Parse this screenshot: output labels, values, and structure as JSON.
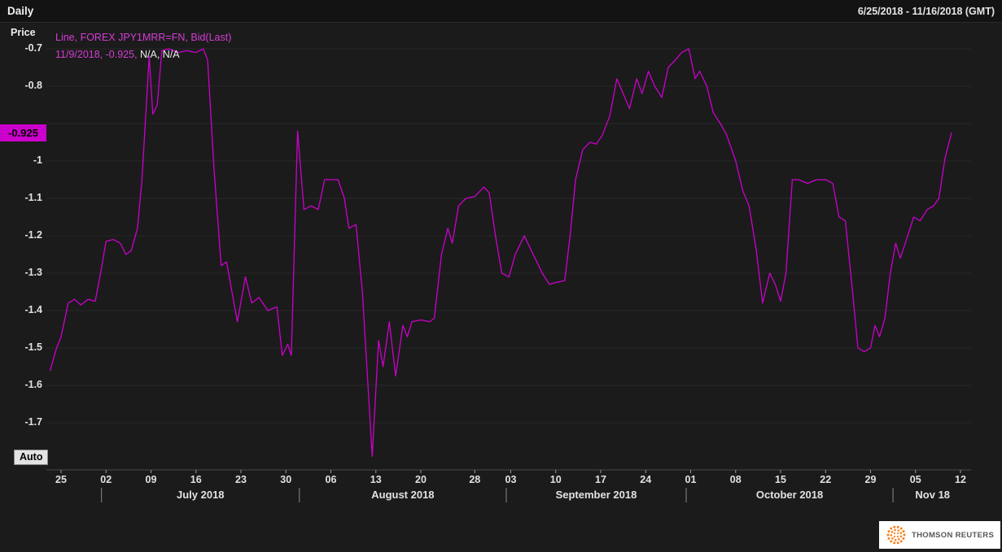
{
  "topbar": {
    "interval": "Daily",
    "date_range": "6/25/2018 - 11/16/2018 (GMT)"
  },
  "axis_title": "Price",
  "legend": {
    "line1": "Line, FOREX JPY1MRR=FN, Bid(Last)",
    "line2_magenta": "11/9/2018, -0.925,",
    "line2_white": " N/A, N/A"
  },
  "last_price_badge": "-0.925",
  "auto_button": "Auto",
  "branding": "THOMSON REUTERS",
  "colors": {
    "background": "#1b1b1b",
    "line": "#cc00cc",
    "badge_bg": "#cc00cc",
    "legend_magenta": "#d63cd6",
    "grid": "#272727",
    "axis_line": "#4a4a4a",
    "tick": "#9a9a9a",
    "text": "#e2e2e2",
    "logo_orange": "#f58220"
  },
  "chart_data": {
    "type": "line",
    "title": "FOREX JPY1MRR=FN, Bid(Last), Daily",
    "xlabel": "",
    "ylabel": "Price",
    "ylim": [
      -1.82,
      -0.64
    ],
    "xlim_days": [
      -1.5,
      101.5
    ],
    "grid": "horizontal, subtle",
    "legend_position": "top-left",
    "last": {
      "date": "11/9/2018",
      "value": -0.925
    },
    "y_ticks": [
      {
        "label": "-0.7",
        "v": -0.7
      },
      {
        "label": "-0.8",
        "v": -0.8
      },
      {
        "label": "-0.9",
        "v": -0.9,
        "hidden": true
      },
      {
        "label": "-1",
        "v": -1.0
      },
      {
        "label": "-1.1",
        "v": -1.1
      },
      {
        "label": "-1.2",
        "v": -1.2
      },
      {
        "label": "-1.3",
        "v": -1.3
      },
      {
        "label": "-1.4",
        "v": -1.4
      },
      {
        "label": "-1.5",
        "v": -1.5
      },
      {
        "label": "-1.6",
        "v": -1.6
      },
      {
        "label": "-1.7",
        "v": -1.7
      }
    ],
    "x_ticks": [
      {
        "label": "25",
        "day": 0
      },
      {
        "label": "02",
        "day": 5
      },
      {
        "label": "09",
        "day": 10
      },
      {
        "label": "16",
        "day": 15
      },
      {
        "label": "23",
        "day": 20
      },
      {
        "label": "30",
        "day": 25
      },
      {
        "label": "06",
        "day": 30
      },
      {
        "label": "13",
        "day": 35
      },
      {
        "label": "20",
        "day": 40
      },
      {
        "label": "28",
        "day": 46
      },
      {
        "label": "03",
        "day": 50
      },
      {
        "label": "10",
        "day": 55
      },
      {
        "label": "17",
        "day": 60
      },
      {
        "label": "24",
        "day": 65
      },
      {
        "label": "01",
        "day": 70
      },
      {
        "label": "08",
        "day": 75
      },
      {
        "label": "15",
        "day": 80
      },
      {
        "label": "22",
        "day": 85
      },
      {
        "label": "29",
        "day": 90
      },
      {
        "label": "05",
        "day": 95
      },
      {
        "label": "12",
        "day": 100
      }
    ],
    "months": [
      {
        "label": "July 2018",
        "start": 4.5,
        "end": 26.5
      },
      {
        "label": "August 2018",
        "start": 26.5,
        "end": 49.5
      },
      {
        "label": "September 2018",
        "start": 49.5,
        "end": 69.5
      },
      {
        "label": "October 2018",
        "start": 69.5,
        "end": 92.5
      },
      {
        "label": "Nov 18",
        "start": 92.5,
        "end": 101.3
      }
    ],
    "points": [
      [
        -1.2,
        -1.56
      ],
      [
        -0.5,
        -1.5
      ],
      [
        0,
        -1.47
      ],
      [
        0.8,
        -1.38
      ],
      [
        1.5,
        -1.37
      ],
      [
        2.2,
        -1.385
      ],
      [
        3,
        -1.37
      ],
      [
        3.8,
        -1.375
      ],
      [
        4.4,
        -1.3
      ],
      [
        5,
        -1.215
      ],
      [
        5.8,
        -1.21
      ],
      [
        6.6,
        -1.22
      ],
      [
        7.2,
        -1.25
      ],
      [
        7.8,
        -1.24
      ],
      [
        8.5,
        -1.18
      ],
      [
        9,
        -1.05
      ],
      [
        9.8,
        -0.72
      ],
      [
        10.2,
        -0.875
      ],
      [
        10.7,
        -0.85
      ],
      [
        11.2,
        -0.705
      ],
      [
        12,
        -0.7
      ],
      [
        13,
        -0.71
      ],
      [
        14,
        -0.705
      ],
      [
        15,
        -0.71
      ],
      [
        15.8,
        -0.7
      ],
      [
        16.3,
        -0.73
      ],
      [
        17,
        -1.02
      ],
      [
        17.8,
        -1.28
      ],
      [
        18.4,
        -1.27
      ],
      [
        19.6,
        -1.43
      ],
      [
        20.5,
        -1.31
      ],
      [
        21.2,
        -1.38
      ],
      [
        22,
        -1.365
      ],
      [
        23,
        -1.4
      ],
      [
        24,
        -1.39
      ],
      [
        24.6,
        -1.52
      ],
      [
        25.2,
        -1.49
      ],
      [
        25.6,
        -1.52
      ],
      [
        26.3,
        -0.92
      ],
      [
        27,
        -1.13
      ],
      [
        27.8,
        -1.12
      ],
      [
        28.6,
        -1.13
      ],
      [
        29.3,
        -1.05
      ],
      [
        30,
        -1.05
      ],
      [
        30.8,
        -1.05
      ],
      [
        31.5,
        -1.1
      ],
      [
        32,
        -1.18
      ],
      [
        32.8,
        -1.17
      ],
      [
        33.5,
        -1.35
      ],
      [
        34,
        -1.55
      ],
      [
        34.6,
        -1.79
      ],
      [
        35.3,
        -1.48
      ],
      [
        35.8,
        -1.55
      ],
      [
        36.5,
        -1.43
      ],
      [
        37.2,
        -1.575
      ],
      [
        38,
        -1.44
      ],
      [
        38.5,
        -1.47
      ],
      [
        39,
        -1.43
      ],
      [
        40,
        -1.425
      ],
      [
        41,
        -1.43
      ],
      [
        41.5,
        -1.42
      ],
      [
        42.3,
        -1.25
      ],
      [
        43,
        -1.18
      ],
      [
        43.5,
        -1.22
      ],
      [
        44.2,
        -1.12
      ],
      [
        45,
        -1.1
      ],
      [
        46,
        -1.095
      ],
      [
        47,
        -1.07
      ],
      [
        47.6,
        -1.085
      ],
      [
        48.3,
        -1.2
      ],
      [
        49,
        -1.3
      ],
      [
        49.8,
        -1.31
      ],
      [
        50.5,
        -1.25
      ],
      [
        51.5,
        -1.2
      ],
      [
        52.5,
        -1.25
      ],
      [
        53.5,
        -1.3
      ],
      [
        54.3,
        -1.33
      ],
      [
        55,
        -1.325
      ],
      [
        56,
        -1.32
      ],
      [
        56.6,
        -1.2
      ],
      [
        57.2,
        -1.05
      ],
      [
        58,
        -0.97
      ],
      [
        58.8,
        -0.95
      ],
      [
        59.5,
        -0.955
      ],
      [
        60.2,
        -0.93
      ],
      [
        61,
        -0.88
      ],
      [
        61.8,
        -0.78
      ],
      [
        62.5,
        -0.82
      ],
      [
        63.2,
        -0.86
      ],
      [
        64,
        -0.78
      ],
      [
        64.6,
        -0.82
      ],
      [
        65.3,
        -0.76
      ],
      [
        66,
        -0.8
      ],
      [
        66.8,
        -0.83
      ],
      [
        67.5,
        -0.75
      ],
      [
        68.3,
        -0.73
      ],
      [
        69,
        -0.71
      ],
      [
        69.8,
        -0.7
      ],
      [
        70.5,
        -0.78
      ],
      [
        71,
        -0.76
      ],
      [
        71.8,
        -0.8
      ],
      [
        72.5,
        -0.87
      ],
      [
        73.3,
        -0.9
      ],
      [
        74,
        -0.93
      ],
      [
        75,
        -1.0
      ],
      [
        75.8,
        -1.08
      ],
      [
        76.5,
        -1.12
      ],
      [
        77.3,
        -1.24
      ],
      [
        78,
        -1.38
      ],
      [
        78.8,
        -1.3
      ],
      [
        79.4,
        -1.33
      ],
      [
        80,
        -1.375
      ],
      [
        80.6,
        -1.3
      ],
      [
        81.3,
        -1.05
      ],
      [
        82,
        -1.05
      ],
      [
        83,
        -1.06
      ],
      [
        84,
        -1.05
      ],
      [
        85,
        -1.05
      ],
      [
        85.8,
        -1.06
      ],
      [
        86.5,
        -1.15
      ],
      [
        87.2,
        -1.16
      ],
      [
        88,
        -1.35
      ],
      [
        88.6,
        -1.5
      ],
      [
        89.3,
        -1.51
      ],
      [
        90,
        -1.5
      ],
      [
        90.5,
        -1.44
      ],
      [
        91,
        -1.47
      ],
      [
        91.6,
        -1.42
      ],
      [
        92.2,
        -1.3
      ],
      [
        92.8,
        -1.22
      ],
      [
        93.3,
        -1.26
      ],
      [
        94,
        -1.21
      ],
      [
        94.8,
        -1.15
      ],
      [
        95.5,
        -1.16
      ],
      [
        96.3,
        -1.13
      ],
      [
        97,
        -1.12
      ],
      [
        97.6,
        -1.1
      ],
      [
        98.3,
        -0.99
      ],
      [
        99,
        -0.925
      ]
    ]
  }
}
